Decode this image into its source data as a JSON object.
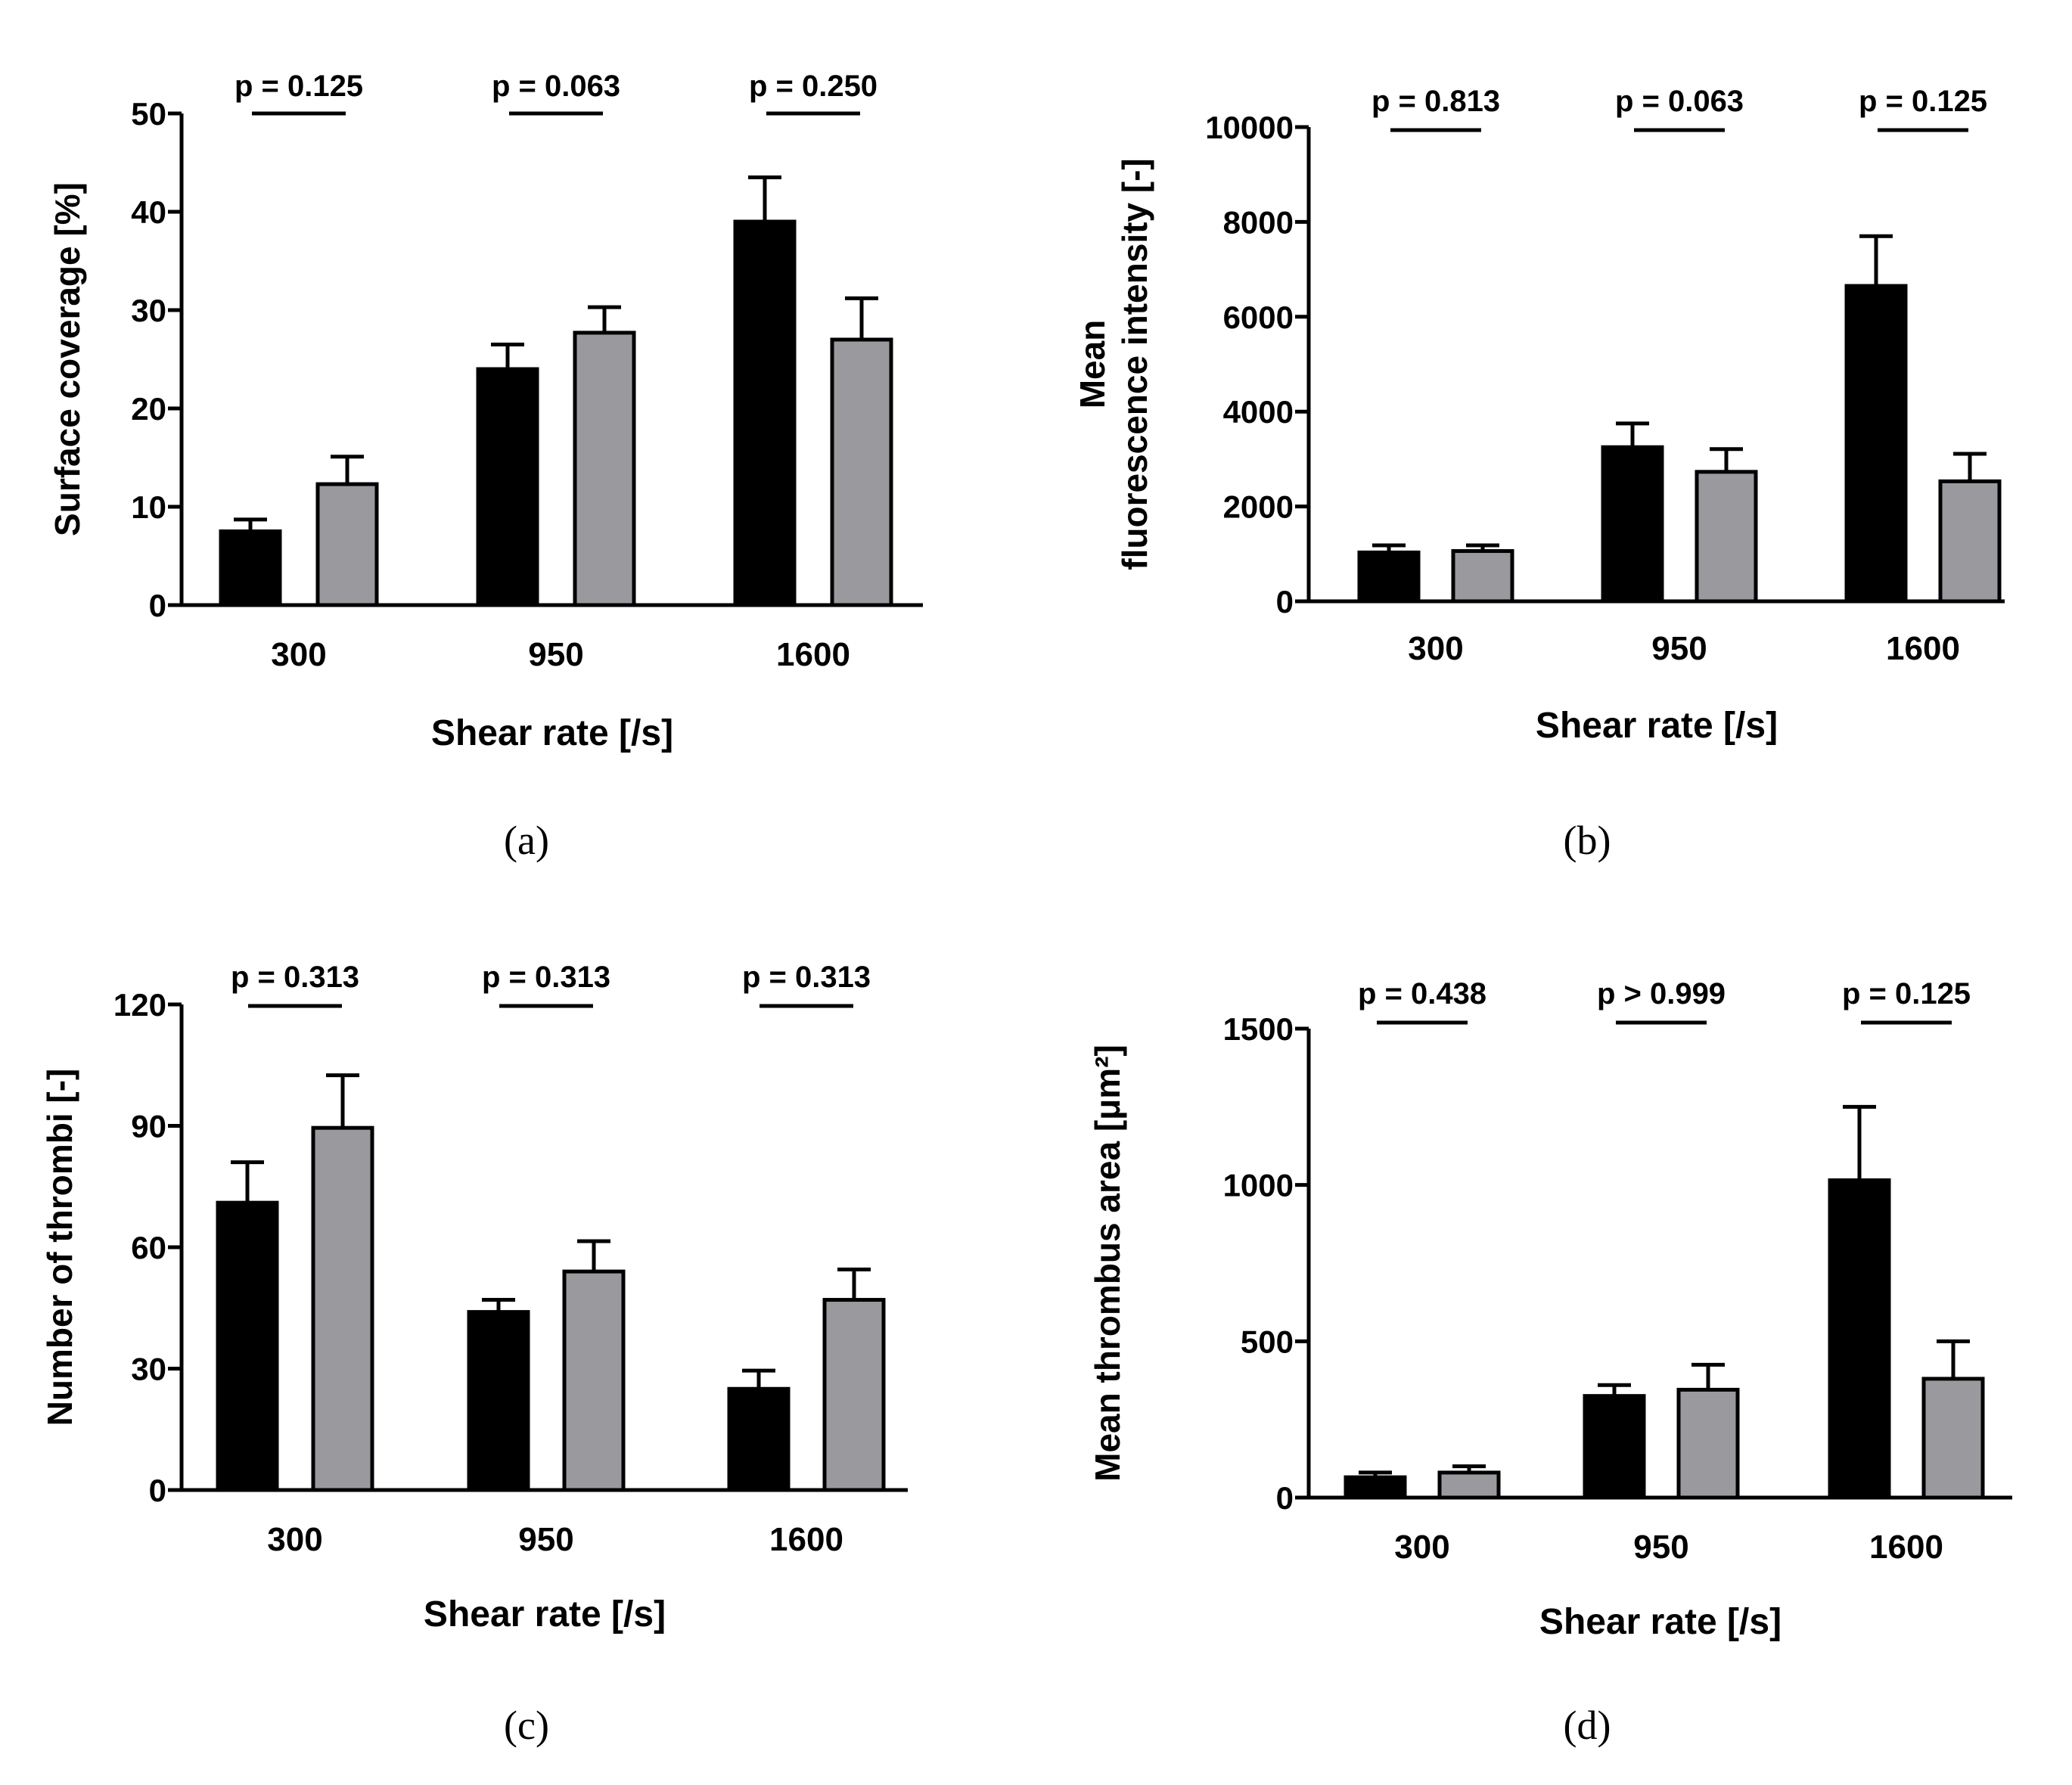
{
  "colors": {
    "group1": "#000000",
    "group2": "#9a9a9e",
    "axis": "#000000"
  },
  "chart_data": [
    {
      "type": "bar",
      "panel_label": "(a)",
      "title": "",
      "xlabel": "Shear rate [/s]",
      "ylabel": "Surface coverage [%]",
      "categories": [
        "300",
        "950",
        "1600"
      ],
      "ylim": [
        0,
        50
      ],
      "yticks": [
        "0",
        "10",
        "20",
        "30",
        "40",
        "50"
      ],
      "series": [
        {
          "name": "group 1 (black)",
          "values": [
            7.5,
            24,
            39
          ],
          "errors": [
            1.2,
            2.5,
            4.5
          ]
        },
        {
          "name": "group 2 (grey)",
          "values": [
            12.3,
            27.7,
            27
          ],
          "errors": [
            2.8,
            2.6,
            4.2
          ]
        }
      ],
      "annotations": [
        "p = 0.125",
        "p = 0.063",
        "p = 0.250"
      ]
    },
    {
      "type": "bar",
      "panel_label": "(b)",
      "title": "",
      "xlabel": "Shear rate [/s]",
      "ylabel_lines": [
        "Mean",
        "fluorescence intensity [-]"
      ],
      "categories": [
        "300",
        "950",
        "1600"
      ],
      "ylim": [
        0,
        10000
      ],
      "yticks": [
        "0",
        "2000",
        "4000",
        "6000",
        "8000",
        "10000"
      ],
      "series": [
        {
          "name": "group 1 (black)",
          "values": [
            1030,
            3250,
            6650
          ],
          "errors": [
            150,
            500,
            1050
          ]
        },
        {
          "name": "group 2 (grey)",
          "values": [
            1060,
            2730,
            2530
          ],
          "errors": [
            120,
            480,
            580
          ]
        }
      ],
      "annotations": [
        "p = 0.813",
        "p = 0.063",
        "p = 0.125"
      ]
    },
    {
      "type": "bar",
      "panel_label": "(c)",
      "title": "",
      "xlabel": "Shear rate [/s]",
      "ylabel": "Number of thrombi [-]",
      "categories": [
        "300",
        "950",
        "1600"
      ],
      "ylim": [
        0,
        120
      ],
      "yticks": [
        "0",
        "30",
        "60",
        "90",
        "120"
      ],
      "series": [
        {
          "name": "group 1 (black)",
          "values": [
            71,
            44,
            25
          ],
          "errors": [
            10,
            3,
            4.5
          ]
        },
        {
          "name": "group 2 (grey)",
          "values": [
            89.5,
            54,
            47
          ],
          "errors": [
            13,
            7.5,
            7.5
          ]
        }
      ],
      "annotations": [
        "p = 0.313",
        "p = 0.313",
        "p = 0.313"
      ]
    },
    {
      "type": "bar",
      "panel_label": "(d)",
      "title": "",
      "xlabel": "Shear rate [/s]",
      "ylabel": "Mean thrombus area [μm²]",
      "categories": [
        "300",
        "950",
        "1600"
      ],
      "ylim": [
        0,
        1500
      ],
      "yticks": [
        "0",
        "500",
        "1000",
        "1500"
      ],
      "series": [
        {
          "name": "group 1 (black)",
          "values": [
            65,
            325,
            1015
          ],
          "errors": [
            15,
            35,
            235
          ]
        },
        {
          "name": "group 2 (grey)",
          "values": [
            80,
            345,
            380
          ],
          "errors": [
            20,
            80,
            120
          ]
        }
      ],
      "annotations": [
        "p = 0.438",
        "p > 0.999",
        "p = 0.125"
      ]
    }
  ]
}
